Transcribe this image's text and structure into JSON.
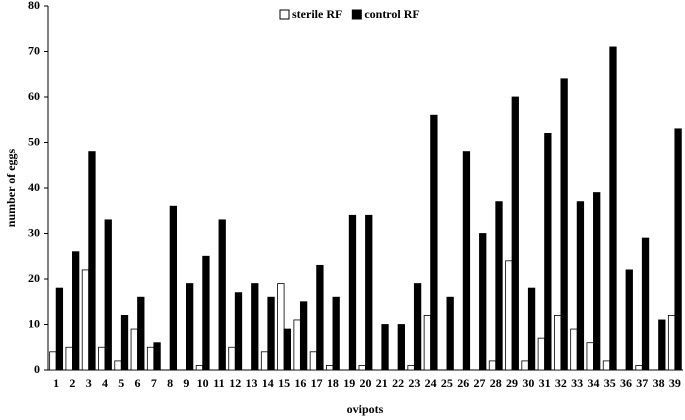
{
  "chart_data": {
    "type": "bar",
    "xlabel": "ovipots",
    "ylabel": "number of eggs",
    "categories": [
      "1",
      "2",
      "3",
      "4",
      "5",
      "6",
      "7",
      "8",
      "9",
      "10",
      "11",
      "12",
      "13",
      "14",
      "15",
      "16",
      "17",
      "18",
      "19",
      "20",
      "21",
      "22",
      "23",
      "24",
      "25",
      "26",
      "27",
      "28",
      "29",
      "30",
      "31",
      "32",
      "33",
      "34",
      "35",
      "36",
      "37",
      "38",
      "39"
    ],
    "series": [
      {
        "name": "sterile RF",
        "color": "#ffffff",
        "values": [
          4,
          5,
          22,
          5,
          2,
          9,
          5,
          0,
          0,
          1,
          0,
          5,
          0,
          4,
          19,
          11,
          4,
          1,
          0,
          1,
          0,
          0,
          1,
          12,
          0,
          0,
          0,
          2,
          24,
          2,
          7,
          12,
          9,
          6,
          2,
          0,
          1,
          0,
          12
        ]
      },
      {
        "name": "control RF",
        "color": "#000000",
        "values": [
          18,
          26,
          48,
          33,
          12,
          16,
          6,
          36,
          19,
          25,
          33,
          17,
          19,
          16,
          9,
          15,
          23,
          16,
          34,
          34,
          10,
          10,
          19,
          56,
          16,
          48,
          30,
          37,
          60,
          18,
          52,
          64,
          37,
          39,
          71,
          22,
          29,
          11,
          53
        ]
      }
    ],
    "ylim": [
      0,
      80
    ],
    "yticks": [
      0,
      10,
      20,
      30,
      40,
      50,
      60,
      70,
      80
    ],
    "grid": false,
    "legend": "top"
  }
}
